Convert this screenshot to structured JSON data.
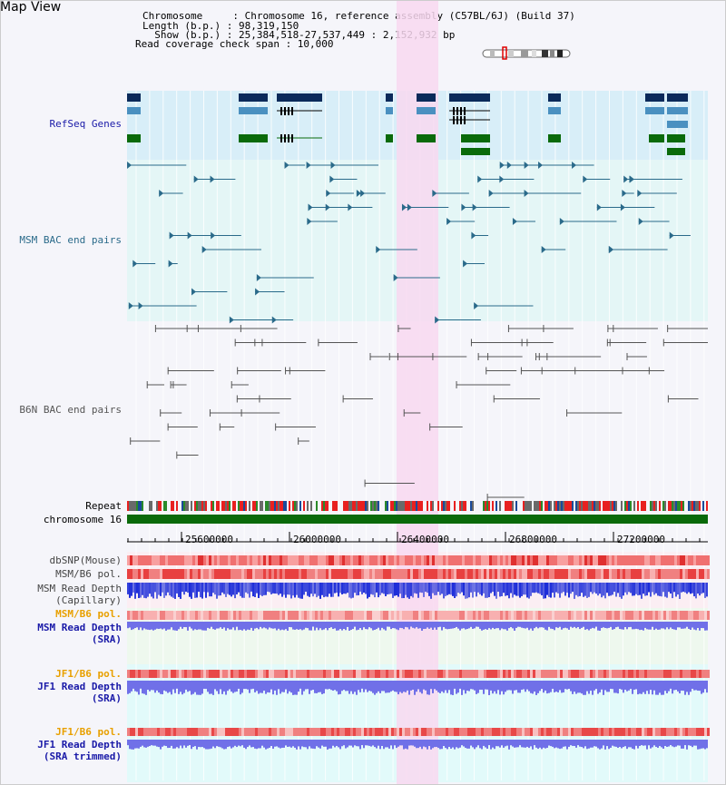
{
  "panel_title": "Map View",
  "header": {
    "line1": "Chromosome     : Chromosome 16, reference assembly (C57BL/6J) (Build 37)",
    "line2": "Length (b.p.) : 98,319,150",
    "line3": "  Show (b.p.) : 25,384,518-27,537,449 : 2,152,932 bp",
    "line4": "Read coverage check span : 10,000"
  },
  "tracks": {
    "refseq": "RefSeq Genes",
    "msm_bac": "MSM BAC end pairs",
    "b6n_bac": "B6N BAC end pairs",
    "repeat": "Repeat",
    "chromosome": "chromosome 16",
    "dbsnp": "dbSNP(Mouse)",
    "msm_b6_pol": "MSM/B6 pol.",
    "msm_read_depth_cap_1": "MSM Read Depth",
    "msm_read_depth_cap_2": "(Capillary)",
    "msm_b6_pol_sra": "MSM/B6 pol.",
    "msm_read_depth_sra_1": "MSM Read Depth",
    "msm_read_depth_sra_2": "(SRA)",
    "jf1_b6_pol": "JF1/B6 pol.",
    "jf1_read_depth_1": "JF1 Read Depth",
    "jf1_read_depth_2": "(SRA)",
    "jf1_b6_pol_trim": "JF1/B6 pol.",
    "jf1_trim_1": "JF1 Read Depth",
    "jf1_trim_2": "(SRA trimmed)"
  },
  "axis_ticks": [
    "25600000",
    "26000000",
    "26400000",
    "26800000",
    "27200000"
  ],
  "colors": {
    "refseq_bg": "#d8eef8",
    "msm_bg": "#e4f6f6",
    "highlight": "#f8d8f0",
    "gene_dark": "#0a2a5a",
    "gene_mid": "#4a90c0",
    "gene_green": "#0a6a0a",
    "msm_line": "#2a6a8a",
    "b6n_line": "#555555",
    "depth_blue": "#1a2ad8",
    "depth_light": "#7070e8",
    "pol_red": "#e84848",
    "label_navy": "#1a1aa8",
    "label_orange": "#e8a000",
    "label_teal": "#2a6a8a"
  }
}
